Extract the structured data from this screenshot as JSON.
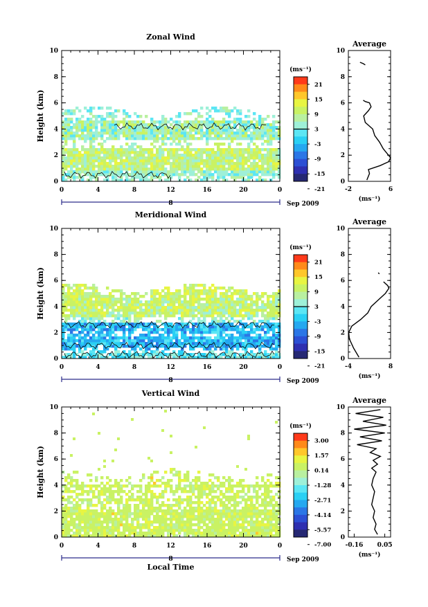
{
  "figure": {
    "date_label": "Sep 2009",
    "xlabel_bottom": "Local Time",
    "avg_title": "Average",
    "units": "(ms⁻¹)"
  },
  "chart_data": [
    {
      "type": "heatmap",
      "title": "Zonal Wind",
      "ylabel": "Height (km)",
      "xlabel": "",
      "xlim": [
        0,
        24
      ],
      "ylim": [
        0,
        10
      ],
      "xticks": [
        "0",
        "4",
        "8",
        "12",
        "16",
        "20",
        "0"
      ],
      "yticks": [
        "0",
        "2",
        "4",
        "6",
        "8",
        "10"
      ],
      "day_label": "8",
      "colorbar": {
        "unit": "(ms⁻¹)",
        "ticks": [
          "21",
          "15",
          "9",
          "3",
          "-3",
          "-9",
          "-15",
          "-21"
        ]
      },
      "profile": {
        "title": "Average",
        "xlabel": "(ms⁻¹)",
        "xlim": [
          -2,
          6
        ],
        "xticks": [
          "-2",
          "6"
        ],
        "height_km": [
          0.1,
          0.6,
          0.9,
          1.2,
          1.5,
          1.8,
          2.1,
          2.5,
          3.0,
          3.5,
          4.0,
          4.5,
          5.0,
          5.4,
          5.7,
          6.0,
          6.1,
          6.2
        ],
        "values": [
          1.5,
          2.0,
          1.8,
          4.0,
          5.6,
          6.0,
          5.4,
          4.6,
          3.9,
          3.0,
          2.6,
          1.2,
          0.9,
          1.8,
          2.3,
          2.0,
          1.2,
          0.8
        ],
        "segments": [
          {
            "height_km": [
              9.1,
              9.0,
              8.9
            ],
            "values": [
              0.2,
              0.8,
              1.2
            ]
          }
        ]
      }
    },
    {
      "type": "heatmap",
      "title": "Meridional Wind",
      "ylabel": "Height (km)",
      "xlabel": "",
      "xlim": [
        0,
        24
      ],
      "ylim": [
        0,
        10
      ],
      "xticks": [
        "0",
        "4",
        "8",
        "12",
        "16",
        "20",
        "0"
      ],
      "yticks": [
        "0",
        "2",
        "4",
        "6",
        "8",
        "10"
      ],
      "day_label": "8",
      "colorbar": {
        "unit": "(ms⁻¹)",
        "ticks": [
          "21",
          "15",
          "9",
          "3",
          "-3",
          "-9",
          "-15",
          "-21"
        ]
      },
      "profile": {
        "title": "Average",
        "xlabel": "(ms⁻¹)",
        "xlim": [
          -4,
          8
        ],
        "xticks": [
          "-4",
          "8"
        ],
        "height_km": [
          0.1,
          0.8,
          1.5,
          2.0,
          2.5,
          3.0,
          3.5,
          4.0,
          4.5,
          5.0,
          5.4,
          5.6,
          5.9
        ],
        "values": [
          -1.0,
          -2.5,
          -3.7,
          -3.9,
          -3.0,
          -0.5,
          1.5,
          2.5,
          4.5,
          6.5,
          7.5,
          7.2,
          6.0
        ],
        "segments": [
          {
            "height_km": [
              6.6,
              6.5
            ],
            "values": [
              4.5,
              4.8
            ]
          }
        ]
      }
    },
    {
      "type": "heatmap",
      "title": "Vertical Wind",
      "ylabel": "Height (km)",
      "xlabel": "Local Time",
      "xlim": [
        0,
        24
      ],
      "ylim": [
        0,
        10
      ],
      "xticks": [
        "0",
        "4",
        "8",
        "12",
        "16",
        "20",
        "0"
      ],
      "yticks": [
        "0",
        "2",
        "4",
        "6",
        "8",
        "10"
      ],
      "day_label": "8",
      "colorbar": {
        "unit": "(ms⁻¹)",
        "ticks": [
          "3.00",
          "1.57",
          "0.14",
          "-1.28",
          "-2.71",
          "-4.14",
          "-5.57",
          "-7.00"
        ]
      },
      "profile": {
        "title": "Average",
        "xlabel": "(ms⁻¹)",
        "xlim": [
          -0.2,
          0.09
        ],
        "xticks": [
          "-0.16",
          "0.05"
        ],
        "height_km": [
          0.2,
          0.6,
          1.0,
          1.5,
          2.0,
          2.5,
          3.0,
          3.5,
          4.0,
          4.5,
          5.0,
          5.3,
          5.6,
          5.9,
          6.2,
          6.5,
          6.8,
          7.1,
          7.4,
          7.7,
          8.0,
          8.3,
          8.6,
          8.9,
          9.2,
          9.5,
          9.8
        ],
        "values": [
          0.0,
          -0.02,
          -0.01,
          -0.03,
          -0.02,
          -0.04,
          -0.03,
          -0.02,
          -0.04,
          -0.03,
          -0.01,
          -0.04,
          0.0,
          -0.03,
          0.02,
          -0.05,
          -0.01,
          -0.14,
          0.03,
          -0.12,
          0.05,
          -0.16,
          0.06,
          -0.1,
          0.04,
          -0.15,
          0.02
        ],
        "segments": []
      }
    }
  ]
}
